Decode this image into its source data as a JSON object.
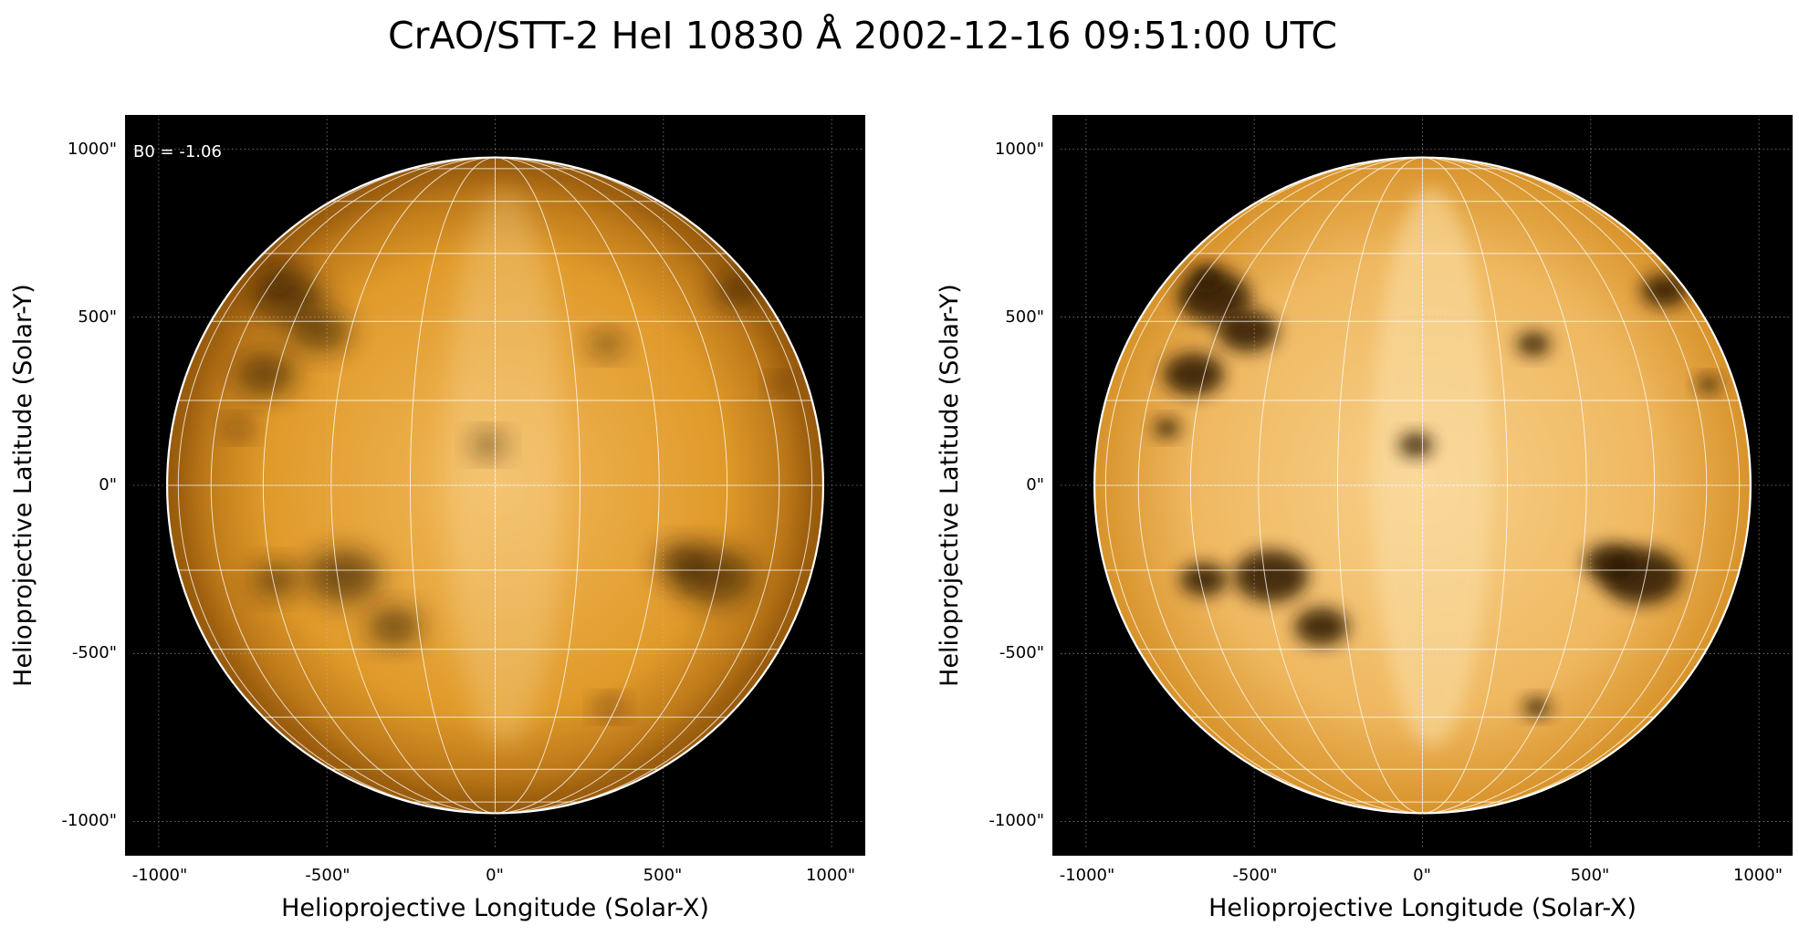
{
  "title": "CrAO/STT-2 HeI 10830 Å 2002-12-16 09:51:00 UTC",
  "annotation": "B0 = -1.06",
  "colors": {
    "background": "#000000",
    "disk_bright": "#f6c878",
    "disk_mid": "#e09a2a",
    "disk_dark": "#2a1404",
    "grid": "#ffffff",
    "limb": "#ffffff"
  },
  "panels": [
    {
      "id": "left",
      "xlabel": "Helioprojective Longitude (Solar-X)",
      "ylabel": "Helioprojective Latitude (Solar-Y)",
      "xticks": [
        "-1000\"",
        "-500\"",
        "0\"",
        "500\"",
        "1000\""
      ],
      "yticks": [
        "1000\"",
        "500\"",
        "0\"",
        "-500\"",
        "-1000\""
      ],
      "contrast": "normal",
      "show_annotation": true
    },
    {
      "id": "right",
      "xlabel": "Helioprojective Longitude (Solar-X)",
      "ylabel": "Helioprojective Latitude (Solar-Y)",
      "xticks": [
        "-1000\"",
        "-500\"",
        "0\"",
        "500\"",
        "1000\""
      ],
      "yticks": [
        "1000\"",
        "500\"",
        "0\"",
        "-500\"",
        "-1000\""
      ],
      "contrast": "enhanced",
      "show_annotation": false
    }
  ],
  "tick_values": [
    -1000,
    -500,
    0,
    500,
    1000
  ],
  "axis_range_arcsec": [
    -1100,
    1100
  ],
  "solar_radius_arcsec": 975,
  "grid_spacing_deg": 15,
  "dark_features": [
    {
      "x": -620,
      "y": 560,
      "r": 110
    },
    {
      "x": -520,
      "y": 460,
      "r": 90
    },
    {
      "x": -680,
      "y": 330,
      "r": 90
    },
    {
      "x": -760,
      "y": 170,
      "r": 40
    },
    {
      "x": -20,
      "y": 120,
      "r": 50
    },
    {
      "x": -450,
      "y": -270,
      "r": 110
    },
    {
      "x": -300,
      "y": -420,
      "r": 80
    },
    {
      "x": -650,
      "y": -280,
      "r": 70
    },
    {
      "x": 650,
      "y": -270,
      "r": 120
    },
    {
      "x": 560,
      "y": -230,
      "r": 80
    },
    {
      "x": 720,
      "y": 580,
      "r": 70
    },
    {
      "x": 340,
      "y": -660,
      "r": 40
    },
    {
      "x": 330,
      "y": 420,
      "r": 50
    },
    {
      "x": -640,
      "y": 620,
      "r": 50
    },
    {
      "x": 850,
      "y": 300,
      "r": 35
    }
  ]
}
